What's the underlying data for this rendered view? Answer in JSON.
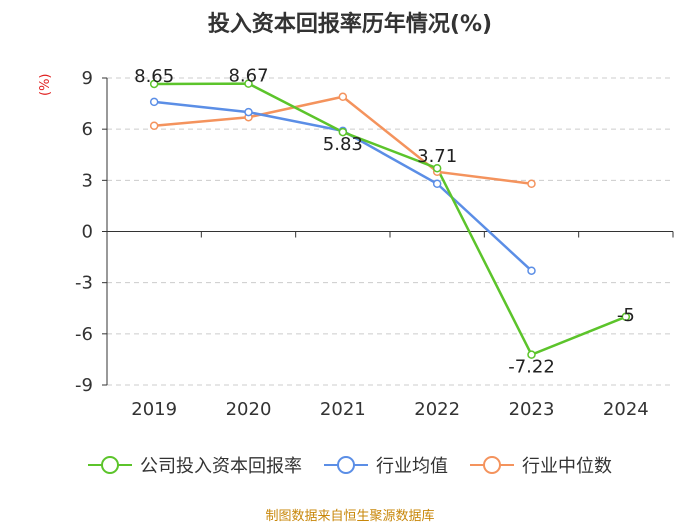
{
  "chart_data": {
    "type": "line",
    "title": "投入资本回报率历年情况(%)",
    "ylabel": "(%)",
    "xlabel": "",
    "categories": [
      "2019",
      "2020",
      "2021",
      "2022",
      "2023",
      "2024"
    ],
    "ylim": [
      -9,
      9
    ],
    "yticks": [
      9,
      6,
      3,
      0,
      -3,
      -6,
      -9
    ],
    "grid": true,
    "legend_position": "bottom",
    "series": [
      {
        "name": "公司投入资本回报率",
        "color": "#5cc42b",
        "values": [
          8.65,
          8.67,
          5.83,
          3.71,
          -7.22,
          -5
        ],
        "labels": [
          "8.65",
          "8.67",
          "5.83",
          "3.71",
          "-7.22",
          "-5"
        ]
      },
      {
        "name": "行业均值",
        "color": "#5b8ee6",
        "values": [
          7.6,
          7.0,
          5.9,
          2.8,
          -2.3,
          null
        ]
      },
      {
        "name": "行业中位数",
        "color": "#f4935d",
        "values": [
          6.2,
          6.7,
          7.9,
          3.5,
          2.8,
          null
        ]
      }
    ]
  },
  "footer": {
    "source": "制图数据来自恒生聚源数据库"
  }
}
